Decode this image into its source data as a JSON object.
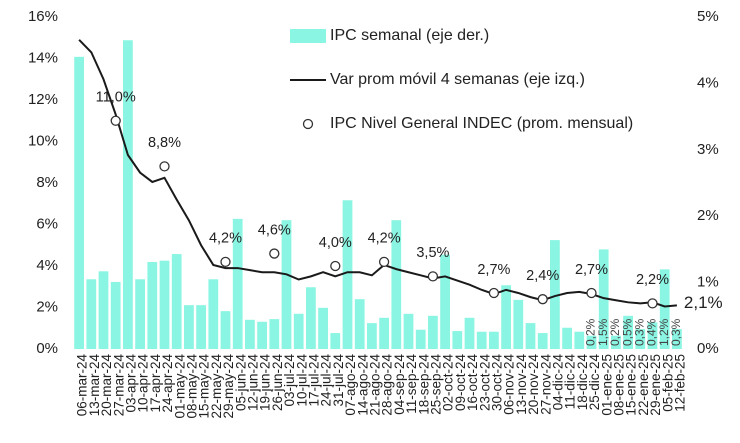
{
  "chart_data": {
    "type": "bar_line",
    "categories": [
      "06-mar-24",
      "13-mar-24",
      "20-mar-24",
      "27-mar-24",
      "03-apr-24",
      "10-apr-24",
      "17-apr-24",
      "24-apr-24",
      "01-may-24",
      "08-may-24",
      "15-may-24",
      "22-may-24",
      "29-may-24",
      "05-jun-24",
      "12-jun-24",
      "19-jun-24",
      "26-jun-24",
      "03-jul-24",
      "10-jul-24",
      "17-jul-24",
      "24-jul-24",
      "31-jul-24",
      "07-ago-24",
      "14-ago-24",
      "21-ago-24",
      "28-ago-24",
      "04-sep-24",
      "11-sep-24",
      "18-sep-24",
      "25-sep-24",
      "02-oct-24",
      "09-oct-24",
      "16-oct-24",
      "23-oct-24",
      "30-oct-24",
      "06-nov-24",
      "13-nov-24",
      "20-nov-24",
      "27-nov-24",
      "04-dic-24",
      "11-dic-24",
      "18-dic-24",
      "25-dic-24",
      "01-ene-25",
      "08-ene-25",
      "15-ene-25",
      "22-ene-25",
      "29-ene-25",
      "05-feb-25",
      "12-feb-25"
    ],
    "series": [
      {
        "name": "IPC semanal (eje der.)",
        "type": "bar",
        "axis": "y2",
        "color": "#8af5e2",
        "values": [
          4.4,
          1.05,
          1.17,
          1.01,
          4.65,
          1.05,
          1.31,
          1.33,
          1.43,
          0.66,
          0.66,
          1.05,
          0.57,
          1.96,
          0.44,
          0.41,
          0.45,
          1.94,
          0.53,
          0.93,
          0.62,
          0.24,
          2.24,
          0.75,
          0.39,
          0.47,
          1.94,
          0.53,
          0.29,
          0.5,
          1.42,
          0.27,
          0.47,
          0.26,
          0.26,
          0.96,
          0.74,
          0.39,
          0.24,
          1.64,
          0.32,
          0.26,
          0.2,
          1.5,
          0.2,
          0.5,
          0.3,
          0.4,
          1.2,
          0.3
        ],
        "value_labels": [
          null,
          null,
          null,
          null,
          null,
          null,
          null,
          null,
          null,
          null,
          null,
          null,
          null,
          null,
          null,
          null,
          null,
          null,
          null,
          null,
          null,
          null,
          null,
          null,
          null,
          null,
          null,
          null,
          null,
          null,
          null,
          null,
          null,
          null,
          null,
          null,
          null,
          null,
          null,
          null,
          null,
          null,
          "0,2%",
          "1,5%",
          "0,2%",
          "0,5%",
          "0,3%",
          "0,4%",
          "1,2%",
          "0,3%"
        ]
      },
      {
        "name": "Var prom móvil 4 semanas (eje izq.)",
        "type": "line",
        "color": "#1a1a1a",
        "values": [
          14.9,
          14.3,
          13.0,
          11.3,
          9.35,
          8.5,
          8.05,
          8.25,
          7.2,
          6.2,
          5.0,
          4.05,
          3.9,
          3.9,
          3.8,
          3.7,
          3.7,
          3.6,
          3.35,
          3.5,
          3.7,
          3.5,
          3.7,
          3.7,
          3.55,
          4.05,
          3.85,
          3.7,
          3.55,
          3.4,
          3.5,
          3.3,
          3.1,
          2.85,
          2.65,
          2.85,
          2.7,
          2.5,
          2.35,
          2.55,
          2.7,
          2.75,
          2.65,
          2.45,
          2.35,
          2.25,
          2.2,
          2.25,
          2.05,
          2.1
        ],
        "value_labels": [
          null,
          null,
          null,
          null,
          null,
          null,
          null,
          null,
          null,
          null,
          null,
          null,
          null,
          null,
          null,
          null,
          null,
          null,
          null,
          null,
          null,
          null,
          null,
          null,
          null,
          null,
          null,
          null,
          null,
          null,
          null,
          null,
          null,
          null,
          null,
          null,
          null,
          null,
          null,
          null,
          null,
          null,
          null,
          null,
          null,
          null,
          null,
          null,
          null,
          "2,1%"
        ]
      },
      {
        "name": "IPC Nivel General INDEC (prom. mensual)",
        "type": "scatter",
        "color": "#333333",
        "values": [
          null,
          null,
          null,
          11.0,
          null,
          null,
          null,
          8.8,
          null,
          null,
          null,
          null,
          4.2,
          null,
          null,
          null,
          4.6,
          null,
          null,
          null,
          null,
          4.0,
          null,
          null,
          null,
          4.2,
          null,
          null,
          null,
          3.5,
          null,
          null,
          null,
          null,
          2.7,
          null,
          null,
          null,
          2.4,
          null,
          null,
          null,
          2.7,
          null,
          null,
          null,
          null,
          2.2,
          null,
          null
        ],
        "value_labels": [
          null,
          null,
          null,
          "11,0%",
          null,
          null,
          null,
          "8,8%",
          null,
          null,
          null,
          null,
          "4,2%",
          null,
          null,
          null,
          "4,6%",
          null,
          null,
          null,
          null,
          "4,0%",
          null,
          null,
          null,
          "4,2%",
          null,
          null,
          null,
          "3,5%",
          null,
          null,
          null,
          null,
          "2,7%",
          null,
          null,
          null,
          "2,4%",
          null,
          null,
          null,
          "2,7%",
          null,
          null,
          null,
          null,
          "2,2%",
          null,
          null
        ]
      }
    ],
    "ylim": [
      0,
      16
    ],
    "yticks": [
      {
        "value": 0,
        "label": "0%"
      },
      {
        "value": 2,
        "label": "2%"
      },
      {
        "value": 4,
        "label": "4%"
      },
      {
        "value": 6,
        "label": "6%"
      },
      {
        "value": 8,
        "label": "8%"
      },
      {
        "value": 10,
        "label": "10%"
      },
      {
        "value": 12,
        "label": "12%"
      },
      {
        "value": 14,
        "label": "14%"
      },
      {
        "value": 16,
        "label": "16%"
      }
    ],
    "y2lim": [
      0,
      5
    ],
    "y2ticks": [
      {
        "value": 0,
        "label": "0%"
      },
      {
        "value": 1,
        "label": "1%"
      },
      {
        "value": 2,
        "label": "2%"
      },
      {
        "value": 3,
        "label": "3%"
      },
      {
        "value": 4,
        "label": "4%"
      },
      {
        "value": 5,
        "label": "5%"
      }
    ]
  }
}
